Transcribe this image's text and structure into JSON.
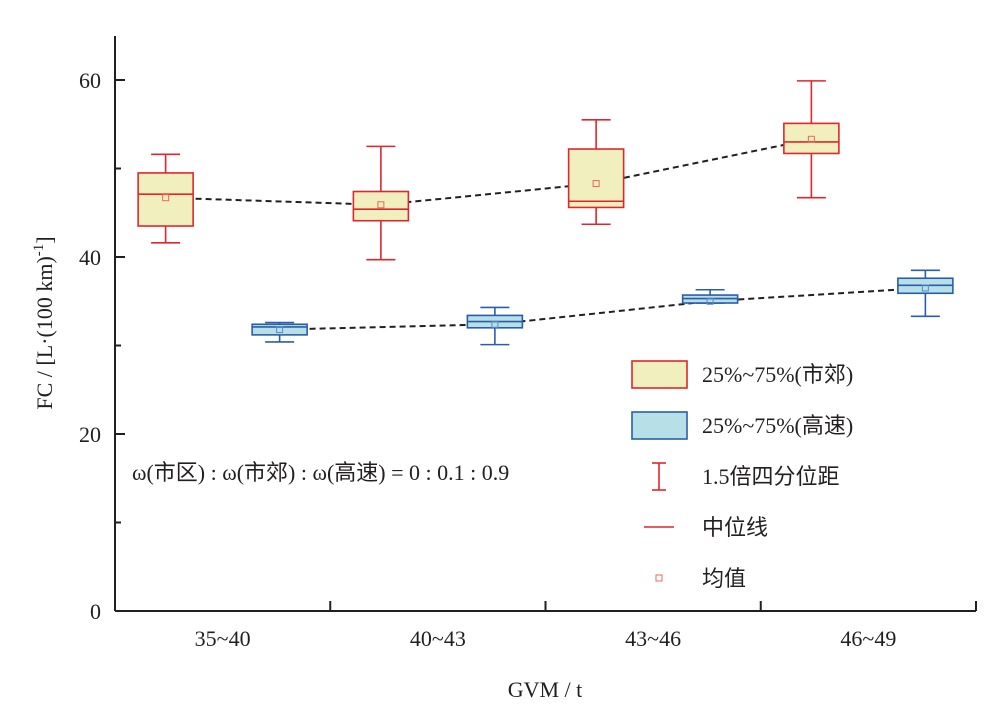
{
  "chart_data": {
    "type": "box",
    "title": "",
    "xlabel": "GVM / t",
    "ylabel": "FC / [L·(100 km)",
    "ylabel_superscript": "-1",
    "ylabel_close": "]",
    "ylim": [
      0,
      65
    ],
    "yticks": [
      0,
      20,
      40,
      60
    ],
    "yminor_ticks": [
      10,
      30,
      50
    ],
    "categories": [
      "35~40",
      "40~43",
      "43~46",
      "46~49"
    ],
    "grid": false,
    "legend_position": "right-middle",
    "series": [
      {
        "name": "25%~75%(市郊)",
        "fill": "#f2efbf",
        "stroke": "#e0262d",
        "boxes": [
          {
            "whisker_low": 41.6,
            "q1": 43.5,
            "median": 47.1,
            "q3": 49.5,
            "whisker_high": 51.6,
            "mean": 46.7
          },
          {
            "whisker_low": 39.7,
            "q1": 44.1,
            "median": 45.4,
            "q3": 47.4,
            "whisker_high": 52.5,
            "mean": 45.9
          },
          {
            "whisker_low": 43.7,
            "q1": 45.6,
            "median": 46.3,
            "q3": 52.2,
            "whisker_high": 55.5,
            "mean": 48.3
          },
          {
            "whisker_low": 46.7,
            "q1": 51.7,
            "median": 53.0,
            "q3": 55.1,
            "whisker_high": 59.9,
            "mean": 53.3
          }
        ]
      },
      {
        "name": "25%~75%(高速)",
        "fill": "#b7dfe8",
        "stroke": "#2b5ea8",
        "boxes": [
          {
            "whisker_low": 30.4,
            "q1": 31.2,
            "median": 32.1,
            "q3": 32.4,
            "whisker_high": 32.6,
            "mean": 31.8
          },
          {
            "whisker_low": 30.1,
            "q1": 32.0,
            "median": 32.7,
            "q3": 33.4,
            "whisker_high": 34.3,
            "mean": 32.4
          },
          {
            "whisker_low": 34.8,
            "q1": 34.8,
            "median": 35.3,
            "q3": 35.7,
            "whisker_high": 36.3,
            "mean": 35.0
          },
          {
            "whisker_low": 33.3,
            "q1": 35.9,
            "median": 36.8,
            "q3": 37.6,
            "whisker_high": 38.5,
            "mean": 36.5
          }
        ]
      }
    ],
    "legend": [
      {
        "kind": "box-suburban",
        "label": "25%~75%(市郊)"
      },
      {
        "kind": "box-highway",
        "label": "25%~75%(高速)"
      },
      {
        "kind": "whisker",
        "label": "1.5倍四分位距"
      },
      {
        "kind": "median",
        "label": "中位线"
      },
      {
        "kind": "mean",
        "label": "均值"
      }
    ],
    "annotation": "ω(市区) : ω(市郊) : ω(高速) = 0 : 0.1 : 0.9",
    "mean_line_style": "dashed",
    "colors": {
      "axis": "#231f20",
      "mean_line": "#231f20",
      "suburban_stroke": "#e0262d",
      "suburban_fill": "#f2efbf",
      "highway_stroke": "#2b5ea8",
      "highway_fill": "#b7dfe8"
    }
  }
}
